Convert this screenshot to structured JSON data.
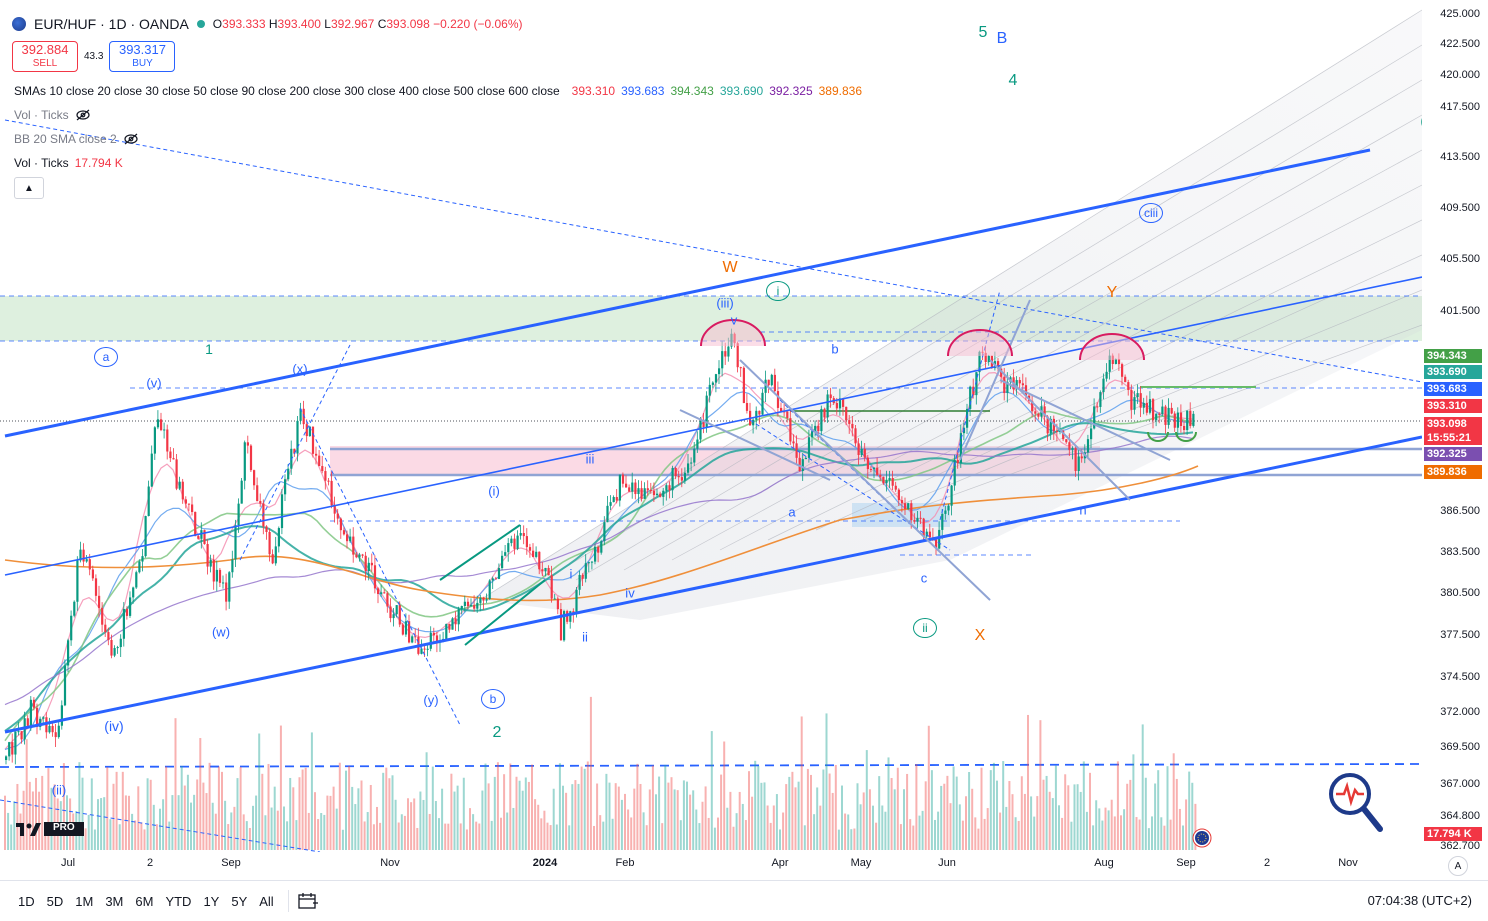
{
  "symbol": {
    "title": "EUR/HUF · 1D · OANDA",
    "ohlc": {
      "o_label": "O",
      "o": "393.333",
      "h_label": "H",
      "h": "393.400",
      "l_label": "L",
      "l": "392.967",
      "c_label": "C",
      "c": "393.098",
      "change": "−0.220 (−0.06%)"
    }
  },
  "trade": {
    "sell_price": "392.884",
    "sell_label": "SELL",
    "spread": "43.3",
    "buy_price": "393.317",
    "buy_label": "BUY"
  },
  "indicators": {
    "smas_label": "SMAs 10 close 20 close 30 close 50 close 90 close 200 close 300 close 400 close 500 close 600 close",
    "smas_values": [
      "393.310",
      "393.683",
      "394.343",
      "393.690",
      "392.325",
      "389.836"
    ],
    "smas_colors": [
      "#f23645",
      "#2962ff",
      "#43a047",
      "#26a69a",
      "#7b1fa2",
      "#ef6c00"
    ],
    "vol_ticks_hidden": "Vol · Ticks",
    "bb_hidden": "BB 20 SMA close 2",
    "vol_ticks": "Vol · Ticks",
    "vol_ticks_value": "17.794 K"
  },
  "price_axis": {
    "labels": [
      "425.000",
      "422.500",
      "420.000",
      "417.500",
      "413.500",
      "409.500",
      "405.500",
      "401.500",
      "386.500",
      "383.500",
      "380.500",
      "377.500",
      "374.500",
      "372.000",
      "369.500",
      "367.000",
      "364.800",
      "362.700"
    ],
    "badges": [
      {
        "text": "394.343",
        "color": "#43a047"
      },
      {
        "text": "393.690",
        "color": "#26a69a"
      },
      {
        "text": "393.683",
        "color": "#2962ff"
      },
      {
        "text": "393.310",
        "color": "#f23645"
      },
      {
        "text": "393.098",
        "color": "#f23645"
      },
      {
        "text": "15:55:21",
        "color": "#f23645"
      },
      {
        "text": "392.325",
        "color": "#7b4fb0"
      },
      {
        "text": "389.836",
        "color": "#ef6c00"
      },
      {
        "text": "17.794 K",
        "color": "#f23645"
      }
    ]
  },
  "time_axis": {
    "labels": [
      "Jul",
      "2",
      "Sep",
      "Nov",
      "2024",
      "Feb",
      "Apr",
      "May",
      "Jun",
      "Aug",
      "Sep",
      "2",
      "Nov"
    ]
  },
  "wave_labels": [
    {
      "text": "W",
      "color": "#ef6c00"
    },
    {
      "text": "Y",
      "color": "#ef6c00"
    },
    {
      "text": "X",
      "color": "#ef6c00"
    },
    {
      "text": "5",
      "color": "#089981"
    },
    {
      "text": "B",
      "color": "#2962ff"
    },
    {
      "text": "4",
      "color": "#089981"
    },
    {
      "text": "1",
      "color": "#089981"
    },
    {
      "text": "2",
      "color": "#089981"
    },
    {
      "text": "(v)",
      "color": "#2962ff"
    },
    {
      "text": "(iii)",
      "color": "#2962ff"
    },
    {
      "text": "(iv)",
      "color": "#2962ff"
    },
    {
      "text": "(ii)",
      "color": "#2962ff"
    },
    {
      "text": "(i)",
      "color": "#2962ff"
    },
    {
      "text": "(x)",
      "color": "#2962ff"
    },
    {
      "text": "(w)",
      "color": "#2962ff"
    },
    {
      "text": "(y)",
      "color": "#2962ff"
    },
    {
      "text": "a",
      "color": "#2962ff"
    },
    {
      "text": "b",
      "color": "#2962ff"
    },
    {
      "text": "c",
      "color": "#2962ff"
    },
    {
      "text": "iii",
      "color": "#2962ff"
    },
    {
      "text": "iv",
      "color": "#2962ff"
    },
    {
      "text": "ii",
      "color": "#2962ff"
    },
    {
      "text": "i",
      "color": "#2962ff"
    },
    {
      "text": "v",
      "color": "#2962ff"
    },
    {
      "text": "n",
      "color": "#2962ff"
    }
  ],
  "circled_labels": [
    {
      "text": "a",
      "color": "#2962ff"
    },
    {
      "text": "b",
      "color": "#2962ff"
    },
    {
      "text": "i",
      "color": "#089981"
    },
    {
      "text": "ii",
      "color": "#089981"
    },
    {
      "text": "ciii",
      "color": "#2962ff"
    }
  ],
  "timeframes": [
    "1D",
    "5D",
    "1M",
    "3M",
    "6M",
    "YTD",
    "1Y",
    "5Y",
    "All"
  ],
  "clock": "07:04:38 (UTC+2)",
  "brand": "PRO",
  "auto_label": "A"
}
